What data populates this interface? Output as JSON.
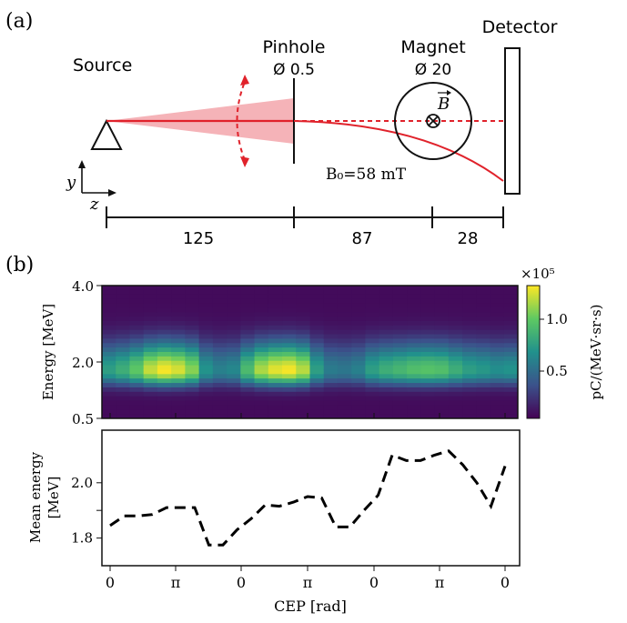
{
  "panel_a": {
    "label": "(a)",
    "source_label": "Source",
    "pinhole_label": "Pinhole",
    "pinhole_size": "Ø 0.5",
    "magnet_label": "Magnet",
    "magnet_size": "Ø 20",
    "detector_label": "Detector",
    "field_symbol": "B",
    "field_text": "B₀=58 mT",
    "axis_y": "y",
    "axis_z": "z",
    "distances": [
      "125",
      "87",
      "28"
    ],
    "colors": {
      "beam": "#e0222b",
      "cone": "#f5b3b8",
      "line": "#111111"
    }
  },
  "panel_b": {
    "label": "(b)",
    "colorbar": {
      "exponent": "×10⁵",
      "ticks": [
        "0.5",
        "1.0"
      ],
      "label": "pC/(MeV·sr·s)"
    },
    "x_ticks": [
      "0",
      "π",
      "0",
      "π",
      "0",
      "π",
      "0"
    ],
    "xlabel": "CEP [rad]"
  },
  "chart_data": [
    {
      "type": "heatmap",
      "ylabel": "Energy [MeV]",
      "y_ticks": [
        "4.0",
        "2.0",
        "0.5"
      ],
      "colormap": "viridis",
      "colorbar_range": [
        0,
        125000
      ],
      "columns": 30,
      "peak_energy": 1.8,
      "column_intensity": [
        0.55,
        0.62,
        0.74,
        0.92,
        1.0,
        0.95,
        0.82,
        0.5,
        0.42,
        0.45,
        0.68,
        0.88,
        0.97,
        1.0,
        0.9,
        0.55,
        0.4,
        0.38,
        0.42,
        0.55,
        0.62,
        0.66,
        0.7,
        0.72,
        0.7,
        0.62,
        0.55,
        0.52,
        0.48,
        0.5
      ]
    },
    {
      "type": "line",
      "ylabel": "Mean energy [MeV]",
      "y_ticks": [
        1.8,
        1.9,
        2.0
      ],
      "y_tick_labels": [
        "1.8",
        "",
        "2.0"
      ],
      "ylim": [
        1.7,
        2.19
      ],
      "style": "dashed",
      "color": "#000000",
      "x": [
        0,
        1,
        2,
        3,
        4,
        5,
        6,
        7,
        8,
        9,
        10,
        11,
        12,
        13,
        14,
        15,
        16,
        17,
        18,
        19,
        20,
        21,
        22,
        23,
        24,
        25,
        26,
        27,
        28
      ],
      "values": [
        1.845,
        1.88,
        1.88,
        1.885,
        1.91,
        1.91,
        1.91,
        1.775,
        1.775,
        1.83,
        1.87,
        1.92,
        1.915,
        1.93,
        1.95,
        1.945,
        1.84,
        1.84,
        1.9,
        1.955,
        2.1,
        2.08,
        2.08,
        2.1,
        2.115,
        2.065,
        2.0,
        1.915,
        2.06
      ]
    }
  ]
}
